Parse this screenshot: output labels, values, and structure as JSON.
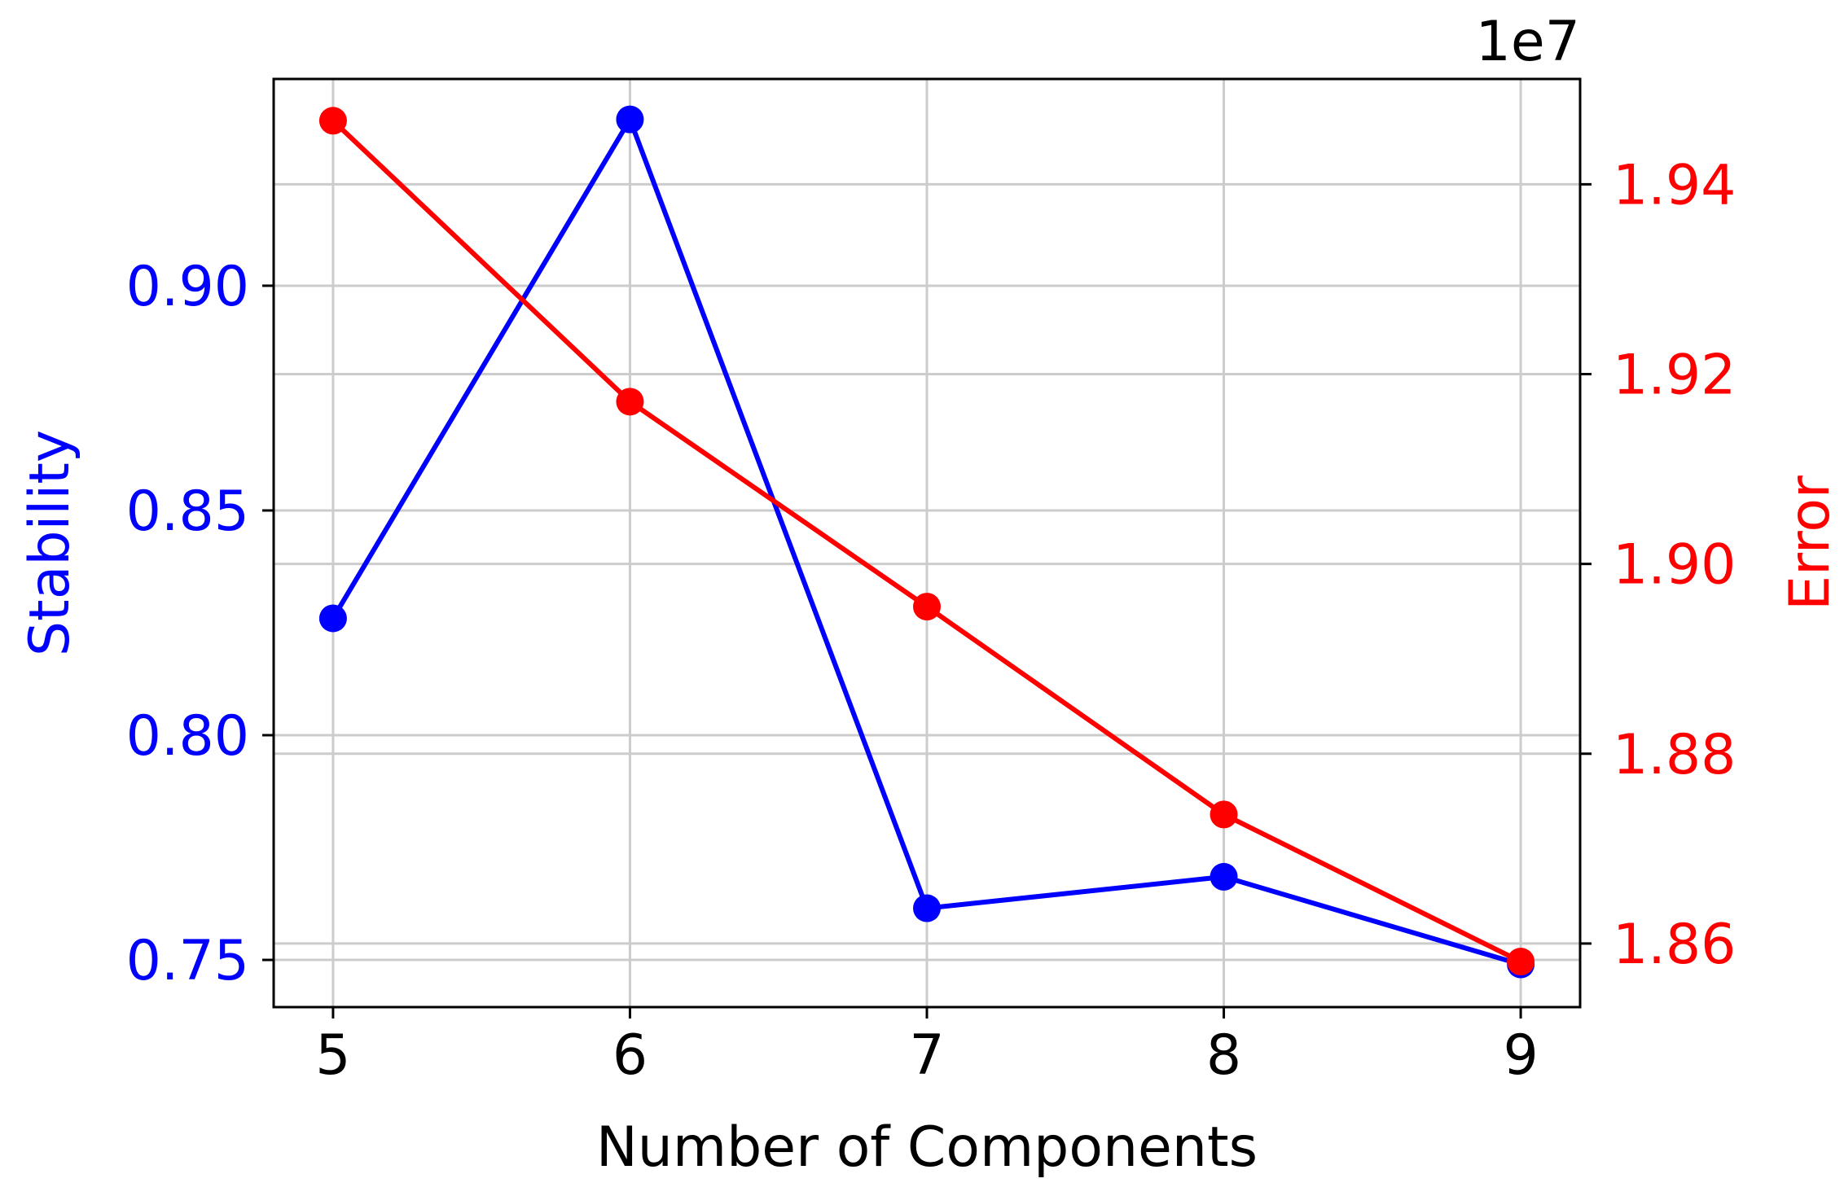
{
  "chart_data": {
    "type": "line",
    "x": [
      5,
      6,
      7,
      8,
      9
    ],
    "xlabel": "Number of Components",
    "xticks": [
      "5",
      "6",
      "7",
      "8",
      "9"
    ],
    "xlim": [
      4.8,
      9.2
    ],
    "grid": true,
    "series": [
      {
        "name": "",
        "axis": "left",
        "color": "#0000ff",
        "marker": "circle",
        "values": [
          0.826,
          0.937,
          0.7615,
          0.7685,
          0.749
        ]
      },
      {
        "name": "",
        "axis": "right",
        "color": "#ff0000",
        "marker": "circle",
        "values": [
          19467000,
          19171000,
          18955000,
          18736000,
          18581000
        ]
      }
    ],
    "y_left": {
      "label": "Stability",
      "color": "#0000ff",
      "lim": [
        0.7395,
        0.946
      ],
      "ticks": [
        0.75,
        0.8,
        0.85,
        0.9
      ],
      "tick_labels": [
        "0.75",
        "0.80",
        "0.85",
        "0.90"
      ]
    },
    "y_right": {
      "label": "Error",
      "color": "#ff0000",
      "offset_text": "1e7",
      "lim": [
        18533000,
        19511000
      ],
      "ticks": [
        18600000,
        18800000,
        19000000,
        19200000,
        19400000
      ],
      "tick_labels": [
        "1.86",
        "1.88",
        "1.90",
        "1.92",
        "1.94"
      ]
    }
  }
}
